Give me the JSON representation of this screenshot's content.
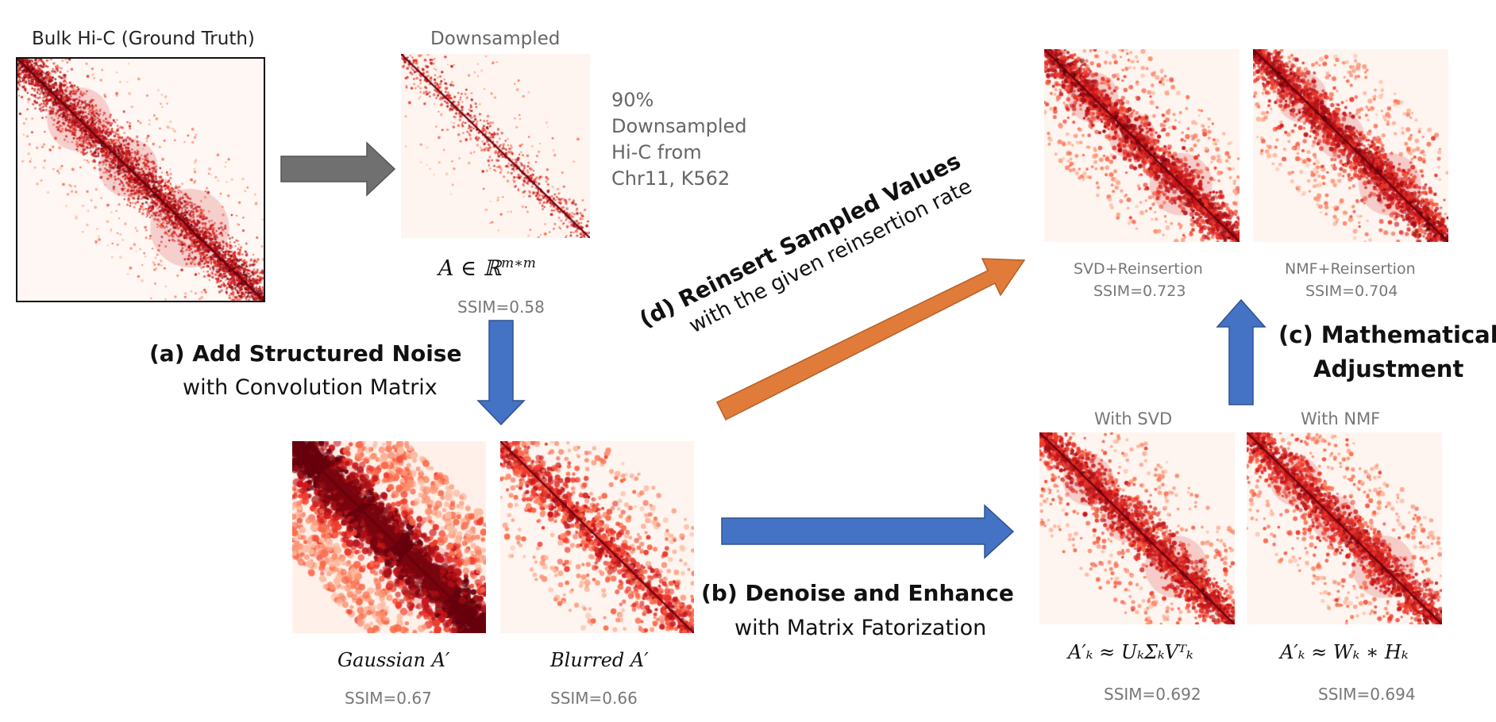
{
  "bulk": {
    "title": "Bulk Hi-C (Ground Truth)"
  },
  "downsampled": {
    "title": "Downsampled",
    "note": [
      "90%",
      "Downsampled",
      "Hi-C from",
      "Chr11, K562"
    ],
    "formula_base": "A ∈ ℝ",
    "formula_sup": "m∗m",
    "ssim": "SSIM=0.58"
  },
  "step_a": {
    "label": "(a)  Add Structured Noise",
    "sub": "with Convolution Matrix"
  },
  "gaussian": {
    "formula": "Gaussian A′",
    "ssim": "SSIM=0.67"
  },
  "blurred": {
    "formula": "Blurred A′",
    "ssim": "SSIM=0.66"
  },
  "step_b": {
    "label": "(b) Denoise and Enhance",
    "sub": "with Matrix Fatorization"
  },
  "svd": {
    "title": "With SVD",
    "formula": "A′ₖ  ≈  UₖΣₖVᵀₖ",
    "ssim": "SSIM=0.692"
  },
  "nmf": {
    "title": "With NMF",
    "formula": "A′ₖ  ≈ Wₖ ∗ Hₖ",
    "ssim": "SSIM=0.694"
  },
  "step_c": {
    "line1": "(c) Mathematical",
    "line2": "Adjustment"
  },
  "step_d": {
    "label": "(d) Reinsert Sampled Values",
    "sub": "with the given reinsertion rate"
  },
  "svd_reinsert": {
    "label": "SVD+Reinsertion",
    "ssim": "SSIM=0.723"
  },
  "nmf_reinsert": {
    "label": "NMF+Reinsertion",
    "ssim": "SSIM=0.704"
  },
  "colors": {
    "heat_dark": "#67000d",
    "heat_mid": "#cb181d",
    "heat_light": "#fcbba1",
    "heat_bg": "#fff5f0",
    "arrow_grey": "#707070",
    "arrow_blue": "#4472c4",
    "arrow_orange": "#e07b39"
  }
}
